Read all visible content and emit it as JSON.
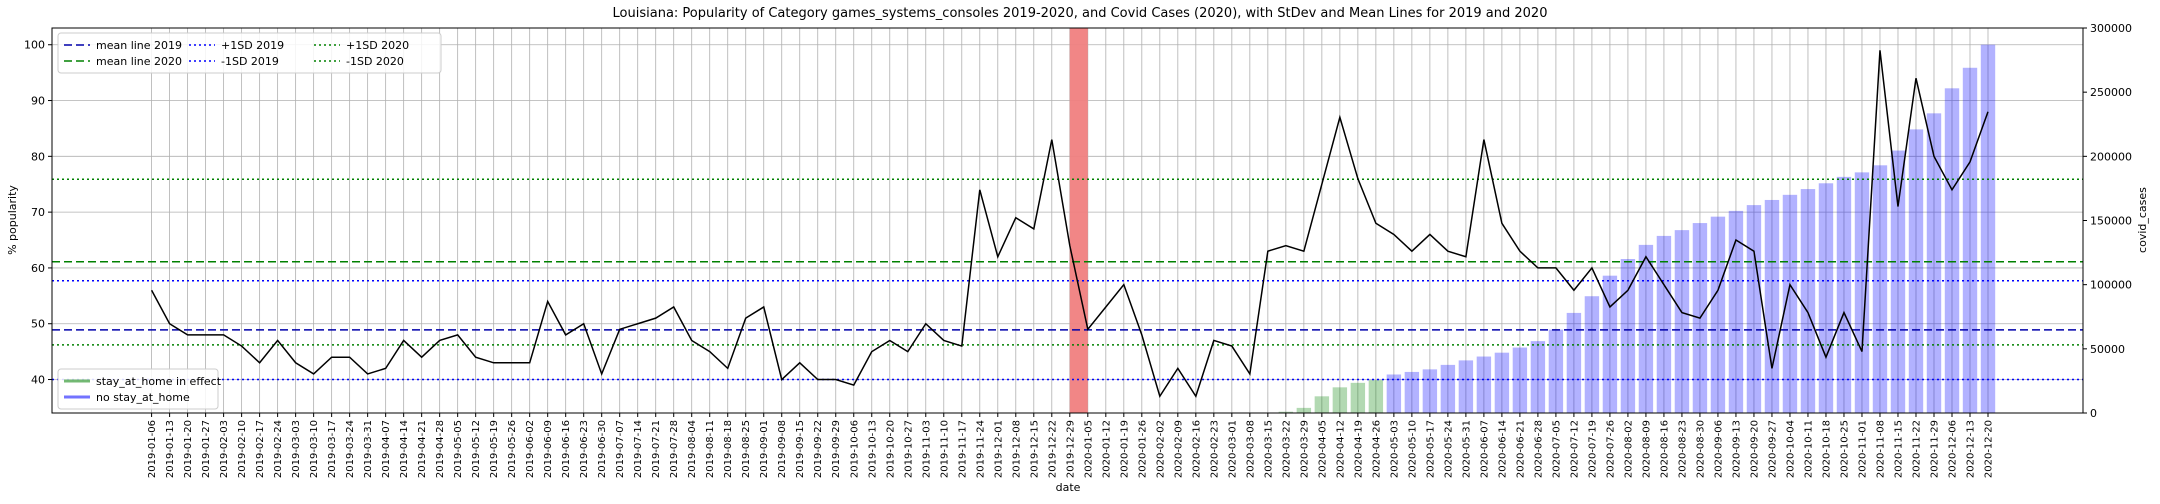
{
  "chart_data": {
    "type": "combo",
    "title": "Louisiana: Popularity of Category games_systems_consoles 2019-2020, and Covid Cases (2020), with StDev and Mean Lines for 2019 and 2020",
    "x_label": "date",
    "y_label": "% popularity",
    "y2_label": "covid_cases",
    "categories": [
      "2019-01-06",
      "2019-01-13",
      "2019-01-20",
      "2019-01-27",
      "2019-02-03",
      "2019-02-10",
      "2019-02-17",
      "2019-02-24",
      "2019-03-03",
      "2019-03-10",
      "2019-03-17",
      "2019-03-24",
      "2019-03-31",
      "2019-04-07",
      "2019-04-14",
      "2019-04-21",
      "2019-04-28",
      "2019-05-05",
      "2019-05-12",
      "2019-05-19",
      "2019-05-26",
      "2019-06-02",
      "2019-06-09",
      "2019-06-16",
      "2019-06-23",
      "2019-06-30",
      "2019-07-07",
      "2019-07-14",
      "2019-07-21",
      "2019-07-28",
      "2019-08-04",
      "2019-08-11",
      "2019-08-18",
      "2019-08-25",
      "2019-09-01",
      "2019-09-08",
      "2019-09-15",
      "2019-09-22",
      "2019-09-29",
      "2019-10-06",
      "2019-10-13",
      "2019-10-20",
      "2019-10-27",
      "2019-11-03",
      "2019-11-10",
      "2019-11-17",
      "2019-11-24",
      "2019-12-01",
      "2019-12-08",
      "2019-12-15",
      "2019-12-22",
      "2019-12-29",
      "2020-01-05",
      "2020-01-12",
      "2020-01-19",
      "2020-01-26",
      "2020-02-02",
      "2020-02-09",
      "2020-02-16",
      "2020-02-23",
      "2020-03-01",
      "2020-03-08",
      "2020-03-15",
      "2020-03-22",
      "2020-03-29",
      "2020-04-05",
      "2020-04-12",
      "2020-04-19",
      "2020-04-26",
      "2020-05-03",
      "2020-05-10",
      "2020-05-17",
      "2020-05-24",
      "2020-05-31",
      "2020-06-07",
      "2020-06-14",
      "2020-06-21",
      "2020-06-28",
      "2020-07-05",
      "2020-07-12",
      "2020-07-19",
      "2020-07-26",
      "2020-08-02",
      "2020-08-09",
      "2020-08-16",
      "2020-08-23",
      "2020-08-30",
      "2020-09-06",
      "2020-09-13",
      "2020-09-20",
      "2020-09-27",
      "2020-10-04",
      "2020-10-11",
      "2020-10-18",
      "2020-10-25",
      "2020-11-01",
      "2020-11-08",
      "2020-11-15",
      "2020-11-22",
      "2020-11-29",
      "2020-12-06",
      "2020-12-13",
      "2020-12-20"
    ],
    "series": [
      {
        "type": "line",
        "color": "#000000",
        "values": [
          56,
          50,
          48,
          48,
          48,
          46,
          43,
          47,
          43,
          41,
          44,
          44,
          41,
          42,
          47,
          44,
          47,
          48,
          44,
          43,
          43,
          43,
          54,
          48,
          50,
          41,
          49,
          50,
          51,
          53,
          47,
          45,
          42,
          51,
          53,
          40,
          43,
          40,
          40,
          39,
          45,
          47,
          45,
          50,
          47,
          46,
          74,
          62,
          69,
          67,
          83,
          64,
          49,
          53,
          57,
          48,
          37,
          42,
          37,
          47,
          46,
          41,
          63,
          64,
          63,
          75,
          87,
          76,
          68,
          66,
          63,
          66,
          63,
          62,
          83,
          68,
          63,
          60,
          60,
          56,
          60,
          53,
          56,
          62,
          57,
          52,
          51,
          56,
          65,
          63,
          42,
          57,
          52,
          44,
          52,
          45,
          99,
          71,
          94,
          80,
          74,
          79,
          88
        ]
      },
      {
        "name": "stay_at_home in effect",
        "type": "bar",
        "axis": "y2",
        "color": "#008000",
        "values": [
          null,
          null,
          null,
          null,
          null,
          null,
          null,
          null,
          null,
          null,
          null,
          null,
          null,
          null,
          null,
          null,
          null,
          null,
          null,
          null,
          null,
          null,
          null,
          null,
          null,
          null,
          null,
          null,
          null,
          null,
          null,
          null,
          null,
          null,
          null,
          null,
          null,
          null,
          null,
          null,
          null,
          null,
          null,
          null,
          null,
          null,
          null,
          null,
          null,
          null,
          null,
          null,
          null,
          null,
          null,
          null,
          null,
          null,
          null,
          null,
          null,
          null,
          null,
          1000,
          4000,
          13000,
          20000,
          23500,
          25700,
          null,
          null,
          null,
          null,
          null,
          null,
          null,
          null,
          null,
          null,
          null,
          null,
          null,
          null,
          null,
          null,
          null,
          null,
          null,
          null,
          null,
          null,
          null,
          null,
          null,
          null,
          null,
          null,
          null,
          null,
          null,
          null,
          null,
          null
        ]
      },
      {
        "name": "no stay_at_home",
        "type": "bar",
        "axis": "y2",
        "color": "#0000ff",
        "values": [
          null,
          null,
          null,
          null,
          null,
          null,
          null,
          null,
          null,
          null,
          null,
          null,
          null,
          null,
          null,
          null,
          null,
          null,
          null,
          null,
          null,
          null,
          null,
          null,
          null,
          null,
          null,
          null,
          null,
          null,
          null,
          null,
          null,
          null,
          null,
          null,
          null,
          null,
          null,
          null,
          null,
          null,
          null,
          null,
          null,
          null,
          null,
          null,
          null,
          null,
          null,
          null,
          null,
          null,
          null,
          null,
          null,
          null,
          null,
          null,
          null,
          null,
          null,
          null,
          null,
          null,
          null,
          null,
          null,
          30000,
          32000,
          34000,
          37500,
          41000,
          44000,
          47000,
          51000,
          56000,
          65000,
          78000,
          91000,
          107000,
          120000,
          131000,
          138000,
          142500,
          148000,
          153000,
          157500,
          162000,
          166000,
          170000,
          174500,
          179000,
          184000,
          187500,
          193000,
          204500,
          221000,
          233500,
          253000,
          269000,
          287000
        ]
      }
    ],
    "hlines": [
      {
        "name": "mean line 2019",
        "value": 48.9,
        "color": "#0000aa",
        "style": "dashed"
      },
      {
        "name": "mean line 2020",
        "value": 61.1,
        "color": "#008000",
        "style": "dashed"
      },
      {
        "name": "+1SD 2019",
        "value": 57.7,
        "color": "#0000ff",
        "style": "dotted"
      },
      {
        "name": "-1SD 2019",
        "value": 40.0,
        "color": "#0000ff",
        "style": "dotted"
      },
      {
        "name": "+1SD 2020",
        "value": 75.9,
        "color": "#008000",
        "style": "dotted"
      },
      {
        "name": "-1SD 2020",
        "value": 46.2,
        "color": "#008000",
        "style": "dotted"
      }
    ],
    "ylim": [
      34,
      103
    ],
    "yticks": [
      40,
      50,
      60,
      70,
      80,
      90,
      100
    ],
    "y2lim": [
      0,
      300000
    ],
    "y2ticks": [
      0,
      50000,
      100000,
      150000,
      200000,
      250000,
      300000
    ],
    "grid": true,
    "legend": "upper left",
    "bar_legend": "lower left"
  }
}
